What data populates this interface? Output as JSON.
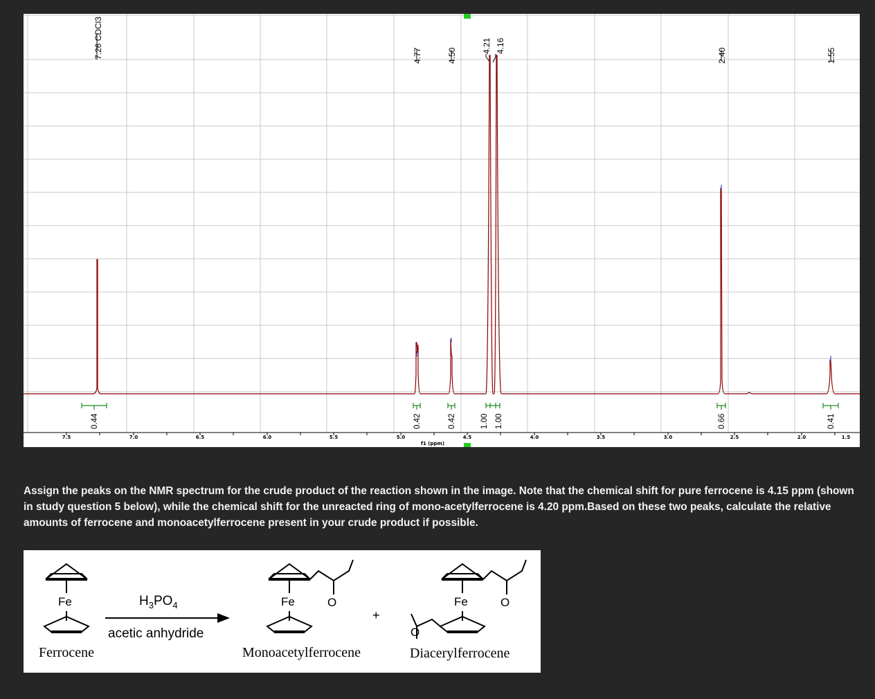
{
  "spectrum": {
    "x_axis_label": "f1 (ppm)",
    "ticks": [
      "7.5",
      "7.0",
      "6.5",
      "6.0",
      "5.5",
      "5.0",
      "4.5",
      "4.0",
      "3.5",
      "3.0",
      "2.5",
      "2.0",
      "1.5"
    ],
    "peak_labels": [
      "7.26 CDCl3",
      "4.77",
      "4.50",
      "4.21",
      "4.16",
      "2.40",
      "1.55"
    ],
    "integrations": [
      "0.44",
      "0.42",
      "0.42",
      "1.00",
      "1.00",
      "0.66",
      "0.41"
    ],
    "colors": {
      "spectrum_line": "#8b0000",
      "integral": "#1e8a1e",
      "grid": "#c8c8c8",
      "peak_marker": "#3a4fc4"
    }
  },
  "question": "Assign the peaks on the NMR spectrum for the crude product of the reaction shown in the image. Note that the chemical shift for pure ferrocene is 4.15 ppm (shown in study question 5 below), while the chemical shift for the unreacted ring of mono-acetylferrocene is 4.20 ppm.Based on these two peaks, calculate the relative amounts of ferrocene and monoacetylferrocene present in your crude product if possible.",
  "scheme": {
    "reagent_top": "H3PO4",
    "reagent_bottom": "acetic anhydride",
    "plus": "+",
    "fe_label": "Fe",
    "oxygen_label": "O",
    "names": [
      "Ferrocene",
      "Monoacetylferrocene",
      "Diacerylferrocene"
    ]
  }
}
